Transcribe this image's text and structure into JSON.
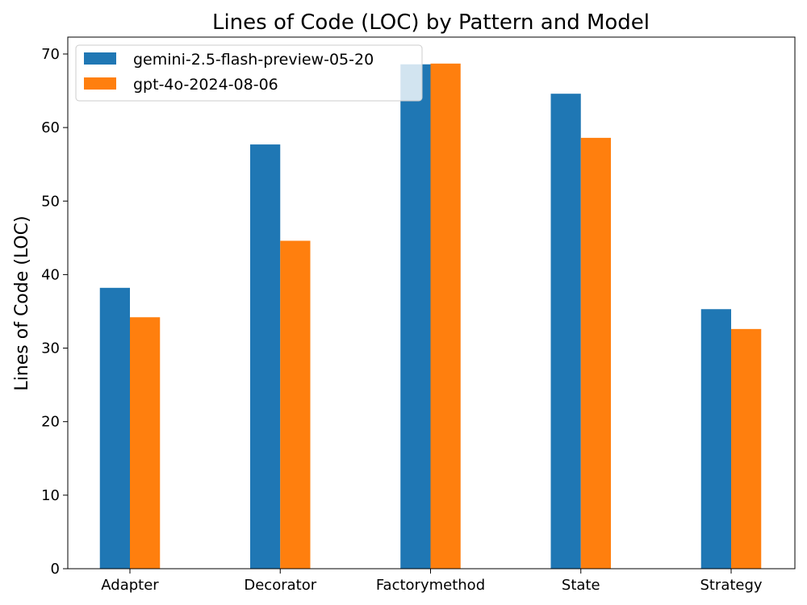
{
  "chart_data": {
    "type": "bar",
    "title": "Lines of Code (LOC) by Pattern and Model",
    "xlabel": "",
    "ylabel": "Lines of Code (LOC)",
    "categories": [
      "Adapter",
      "Decorator",
      "Factorymethod",
      "State",
      "Strategy"
    ],
    "ylim": [
      0,
      72.3
    ],
    "yticks": [
      0,
      10,
      20,
      30,
      40,
      50,
      60,
      70
    ],
    "legend_position": "top-left",
    "grid": false,
    "series": [
      {
        "name": "gemini-2.5-flash-preview-05-20",
        "color": "#1f77b4",
        "values": [
          38.2,
          57.7,
          68.6,
          64.6,
          35.3
        ]
      },
      {
        "name": "gpt-4o-2024-08-06",
        "color": "#ff7f0e",
        "values": [
          34.2,
          44.6,
          68.7,
          58.6,
          32.6
        ]
      }
    ]
  }
}
